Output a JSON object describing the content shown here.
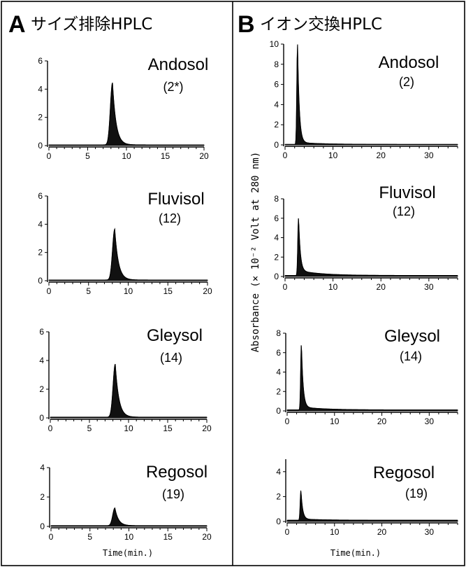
{
  "panels": [
    {
      "letter": "A",
      "title": "サイズ排除HPLC"
    },
    {
      "letter": "B",
      "title": "イオン交換HPLC"
    }
  ],
  "xlabel": "Time(min.)",
  "ylabel": "Absorbance (× 10⁻² Volt at 280 nm)",
  "chart_data": [
    {
      "type": "area",
      "panel": "A",
      "soil": "Andosol",
      "number": "(2*)",
      "xlim": [
        0,
        20
      ],
      "ylim": [
        0,
        6
      ],
      "xticks": [
        0,
        5,
        10,
        15,
        20
      ],
      "yticks": [
        0,
        2,
        4,
        6
      ],
      "peak_time": 8.2,
      "peak_height": 4.4,
      "baseline": 0.05,
      "tail": 0
    },
    {
      "type": "area",
      "panel": "A",
      "soil": "Fluvisol",
      "number": "(12)",
      "xlim": [
        0,
        20
      ],
      "ylim": [
        0,
        6
      ],
      "xticks": [
        0,
        5,
        10,
        15,
        20
      ],
      "yticks": [
        0,
        2,
        4,
        6
      ],
      "peak_time": 8.3,
      "peak_height": 3.6,
      "baseline": 0.05,
      "tail": 0
    },
    {
      "type": "area",
      "panel": "A",
      "soil": "Gleysol",
      "number": "(14)",
      "xlim": [
        0,
        20
      ],
      "ylim": [
        0,
        6
      ],
      "xticks": [
        0,
        5,
        10,
        15,
        20
      ],
      "yticks": [
        0,
        2,
        4,
        6
      ],
      "peak_time": 8.3,
      "peak_height": 3.7,
      "baseline": 0.05,
      "tail": 0
    },
    {
      "type": "area",
      "panel": "A",
      "soil": "Regosol",
      "number": "(19)",
      "xlim": [
        0,
        20
      ],
      "ylim": [
        0,
        4
      ],
      "xticks": [
        0,
        5,
        10,
        15,
        20
      ],
      "yticks": [
        0,
        2,
        4
      ],
      "peak_time": 8.2,
      "peak_height": 1.2,
      "baseline": 0.05,
      "tail": 0
    },
    {
      "type": "area",
      "panel": "B",
      "soil": "Andosol",
      "number": "(2)",
      "xlim": [
        0,
        36
      ],
      "ylim": [
        0,
        10
      ],
      "xticks": [
        0,
        10,
        20,
        30
      ],
      "yticks": [
        0,
        2,
        4,
        6,
        8,
        10
      ],
      "peak_time": 2.6,
      "peak_height": 10,
      "baseline": 0.05,
      "tail": 0.2
    },
    {
      "type": "area",
      "panel": "B",
      "soil": "Fluvisol",
      "number": "(12)",
      "xlim": [
        0,
        36
      ],
      "ylim": [
        0,
        8
      ],
      "xticks": [
        0,
        10,
        20,
        30
      ],
      "yticks": [
        0,
        2,
        4,
        6,
        8
      ],
      "peak_time": 2.8,
      "peak_height": 5.9,
      "baseline": 0.1,
      "tail": 0.5
    },
    {
      "type": "area",
      "panel": "B",
      "soil": "Gleysol",
      "number": "(14)",
      "xlim": [
        0,
        36
      ],
      "ylim": [
        0,
        8
      ],
      "xticks": [
        0,
        10,
        20,
        30
      ],
      "yticks": [
        0,
        2,
        4,
        6,
        8
      ],
      "peak_time": 3.0,
      "peak_height": 6.8,
      "baseline": 0.1,
      "tail": 0.3
    },
    {
      "type": "area",
      "panel": "B",
      "soil": "Regosol",
      "number": "(19)",
      "xlim": [
        0,
        36
      ],
      "ylim": [
        0,
        5
      ],
      "xticks": [
        0,
        10,
        20,
        30
      ],
      "yticks": [
        0,
        2,
        4
      ],
      "peak_time": 2.9,
      "peak_height": 2.4,
      "baseline": 0.1,
      "tail": 0.1
    }
  ]
}
